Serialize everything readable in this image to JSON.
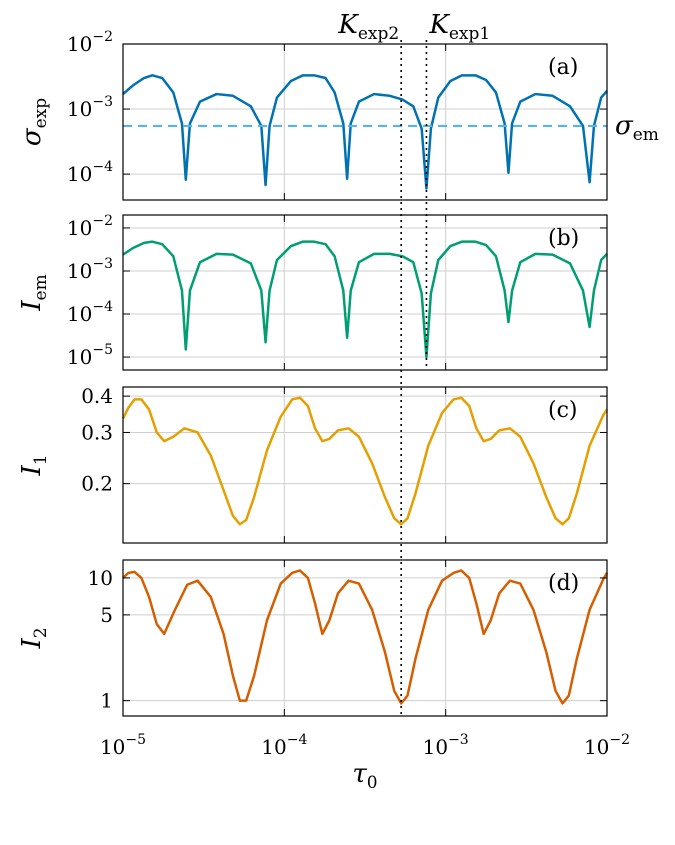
{
  "chart_data": [
    {
      "panel_label": "(a)",
      "type": "line",
      "ylabel": "σ",
      "ylabel_sub": "exp",
      "yscale": "log",
      "ylim": [
        4e-05,
        0.01
      ],
      "yticks": [
        {
          "v": 0.0001,
          "exp": "−4"
        },
        {
          "v": 0.001,
          "exp": "−3"
        },
        {
          "v": 0.01,
          "exp": "−2"
        }
      ],
      "color": "#0072b2",
      "series": [
        {
          "x": [
            1e-05,
            1.15e-05,
            1.35e-05,
            1.52e-05,
            1.75e-05,
            2.05e-05,
            2.32e-05,
            2.45e-05,
            2.6e-05,
            3e-05,
            3.8e-05,
            4.8e-05,
            6.2e-05,
            7.2e-05,
            7.65e-05,
            8.1e-05,
            9e-05,
            0.00011,
            0.00013,
            0.000153,
            0.00018,
            0.000205,
            0.000232,
            0.000245,
            0.000258,
            0.00029,
            0.00036,
            0.00045,
            0.00054,
            0.00063,
            0.00071,
            0.00076,
            0.00081,
            0.0009,
            0.00107,
            0.00126,
            0.00153,
            0.00178,
            0.00205,
            0.00232,
            0.00245,
            0.00258,
            0.0003,
            0.0029,
            0.0036,
            0.0046,
            0.0059,
            0.0071,
            0.0078,
            0.0083,
            0.0092,
            0.01
          ],
          "y": [
            0.0017,
            0.0023,
            0.003,
            0.0033,
            0.003,
            0.0018,
            0.0006,
            8.2e-05,
            0.0006,
            0.0013,
            0.0017,
            0.0016,
            0.0011,
            0.00055,
            6.8e-05,
            0.00055,
            0.0015,
            0.0027,
            0.0033,
            0.0033,
            0.003,
            0.0018,
            0.0006,
            8.5e-05,
            0.0006,
            0.0013,
            0.0017,
            0.0016,
            0.0014,
            0.0011,
            0.0005,
            6e-05,
            0.0005,
            0.0015,
            0.0027,
            0.0033,
            0.0033,
            0.0028,
            0.0018,
            0.0006,
            0.000105,
            0.0006,
            null,
            0.0013,
            0.0017,
            0.0016,
            0.0011,
            0.00055,
            7.5e-05,
            0.00055,
            0.0015,
            0.0019
          ]
        }
      ],
      "hline": {
        "y": 0.00055,
        "label": "σ",
        "label_sub": "em",
        "color": "#56b4e9"
      }
    },
    {
      "panel_label": "(b)",
      "type": "line",
      "ylabel": "I",
      "ylabel_sub": "em",
      "yscale": "log",
      "ylim": [
        5e-06,
        0.02
      ],
      "yticks": [
        {
          "v": 1e-05,
          "exp": "−5"
        },
        {
          "v": 0.0001,
          "exp": "−4"
        },
        {
          "v": 0.001,
          "exp": "−3"
        },
        {
          "v": 0.01,
          "exp": "−2"
        }
      ],
      "color": "#009e73",
      "series": [
        {
          "x": [
            1e-05,
            1.15e-05,
            1.35e-05,
            1.52e-05,
            1.75e-05,
            2.05e-05,
            2.32e-05,
            2.45e-05,
            2.6e-05,
            3e-05,
            3.8e-05,
            4.8e-05,
            6.2e-05,
            7.2e-05,
            7.65e-05,
            8.1e-05,
            9e-05,
            0.00011,
            0.00013,
            0.000153,
            0.00018,
            0.000205,
            0.000232,
            0.000245,
            0.000258,
            0.00029,
            0.00036,
            0.00045,
            0.00054,
            0.00063,
            0.00071,
            0.00076,
            0.00081,
            0.0009,
            0.00107,
            0.00126,
            0.00153,
            0.00178,
            0.00205,
            0.00232,
            0.00245,
            0.00258,
            0.0029,
            0.0036,
            0.0046,
            0.0059,
            0.0071,
            0.0078,
            0.0083,
            0.0092,
            0.01
          ],
          "y": [
            0.0024,
            0.0034,
            0.0045,
            0.0048,
            0.0042,
            0.0022,
            0.00035,
            1.5e-05,
            0.00035,
            0.0016,
            0.0025,
            0.0024,
            0.0015,
            0.00035,
            2.2e-05,
            0.00035,
            0.0018,
            0.0038,
            0.0048,
            0.0048,
            0.0042,
            0.0022,
            0.00035,
            2.8e-05,
            0.00035,
            0.0016,
            0.0025,
            0.0025,
            0.0022,
            0.0016,
            0.0003,
            1e-05,
            0.0003,
            0.0018,
            0.0038,
            0.0048,
            0.0048,
            0.004,
            0.0022,
            0.00035,
            6.5e-05,
            0.00035,
            0.0016,
            0.0025,
            0.0024,
            0.0015,
            0.00035,
            5e-05,
            0.00035,
            0.0018,
            0.0025
          ]
        }
      ]
    },
    {
      "panel_label": "(c)",
      "type": "line",
      "ylabel": "I",
      "ylabel_sub": "1",
      "yscale": "log",
      "ylim": [
        0.125,
        0.43
      ],
      "yticks": [
        {
          "v": 0.2,
          "text": "0.2"
        },
        {
          "v": 0.3,
          "text": "0.3"
        },
        {
          "v": 0.4,
          "text": "0.4"
        }
      ],
      "color": "#e69f00",
      "series": [
        {
          "x": [
            1e-05,
            1.08e-05,
            1.18e-05,
            1.3e-05,
            1.45e-05,
            1.62e-05,
            1.8e-05,
            2.05e-05,
            2.4e-05,
            2.9e-05,
            3.5e-05,
            4.2e-05,
            4.8e-05,
            5.3e-05,
            5.8e-05,
            6.5e-05,
            7.8e-05,
            9.5e-05,
            0.000112,
            0.000125,
            0.00014,
            0.000155,
            0.000172,
            0.00019,
            0.000215,
            0.00025,
            0.00029,
            0.00035,
            0.00042,
            0.00048,
            0.00053,
            0.00058,
            0.00065,
            0.00078,
            0.00095,
            0.00112,
            0.00125,
            0.0014,
            0.00155,
            0.00172,
            0.0019,
            0.00215,
            0.0025,
            0.0029,
            0.0035,
            0.0042,
            0.0048,
            0.0053,
            0.0058,
            0.0065,
            0.0078,
            0.0095,
            0.01
          ],
          "y": [
            0.335,
            0.365,
            0.39,
            0.39,
            0.36,
            0.3,
            0.28,
            0.29,
            0.31,
            0.3,
            0.25,
            0.19,
            0.155,
            0.145,
            0.15,
            0.18,
            0.26,
            0.34,
            0.39,
            0.395,
            0.37,
            0.31,
            0.28,
            0.285,
            0.305,
            0.31,
            0.29,
            0.235,
            0.18,
            0.152,
            0.145,
            0.152,
            0.185,
            0.27,
            0.35,
            0.39,
            0.395,
            0.37,
            0.31,
            0.28,
            0.285,
            0.305,
            0.31,
            0.29,
            0.235,
            0.18,
            0.152,
            0.145,
            0.152,
            0.185,
            0.27,
            0.345,
            0.36
          ]
        }
      ]
    },
    {
      "panel_label": "(d)",
      "type": "line",
      "ylabel": "I",
      "ylabel_sub": "2",
      "yscale": "log",
      "ylim": [
        0.75,
        14
      ],
      "yticks": [
        {
          "v": 1,
          "text": "1"
        },
        {
          "v": 5,
          "text": "5"
        },
        {
          "v": 10,
          "text": "10"
        }
      ],
      "color": "#d55e00",
      "series": [
        {
          "x": [
            1e-05,
            1.08e-05,
            1.18e-05,
            1.3e-05,
            1.45e-05,
            1.62e-05,
            1.8e-05,
            2.1e-05,
            2.5e-05,
            2.9e-05,
            3.5e-05,
            4.2e-05,
            4.8e-05,
            5.3e-05,
            5.8e-05,
            6.5e-05,
            7.8e-05,
            9.5e-05,
            0.000112,
            0.000125,
            0.00014,
            0.000155,
            0.000172,
            0.00019,
            0.000215,
            0.00025,
            0.00029,
            0.00035,
            0.00042,
            0.00048,
            0.00053,
            0.00058,
            0.00065,
            0.00078,
            0.00095,
            0.00112,
            0.00125,
            0.0014,
            0.00155,
            0.00172,
            0.0019,
            0.00215,
            0.0025,
            0.0029,
            0.0035,
            0.0042,
            0.0048,
            0.0053,
            0.0058,
            0.0065,
            0.0078,
            0.0095,
            0.01
          ],
          "y": [
            10.0,
            11.0,
            11.2,
            10.0,
            7.0,
            4.2,
            3.5,
            5.5,
            8.8,
            9.5,
            7.0,
            3.5,
            1.6,
            1.0,
            1.0,
            1.6,
            4.5,
            9.0,
            11.0,
            11.5,
            10.0,
            6.2,
            3.5,
            4.5,
            7.5,
            9.5,
            9.0,
            5.5,
            2.5,
            1.2,
            0.95,
            1.1,
            2.2,
            5.5,
            9.5,
            11.0,
            11.5,
            10.0,
            6.2,
            3.5,
            4.5,
            7.5,
            9.5,
            9.0,
            5.5,
            2.5,
            1.2,
            0.95,
            1.1,
            2.2,
            5.5,
            9.8,
            11.0
          ]
        }
      ]
    }
  ],
  "xaxis": {
    "label": "τ",
    "label_sub": "0",
    "scale": "log",
    "xlim": [
      1e-05,
      0.01
    ],
    "ticks": [
      {
        "v": 1e-05,
        "exp": "−5"
      },
      {
        "v": 0.0001,
        "exp": "−4"
      },
      {
        "v": 0.001,
        "exp": "−3"
      },
      {
        "v": 0.01,
        "exp": "−2"
      }
    ]
  },
  "tick_base": "10",
  "vlines": [
    {
      "x": 0.00053,
      "label": "K",
      "label_sub": "exp2",
      "extends_to_panel": 3
    },
    {
      "x": 0.00076,
      "label": "K",
      "label_sub": "exp1",
      "extends_to_panel": 1
    }
  ]
}
